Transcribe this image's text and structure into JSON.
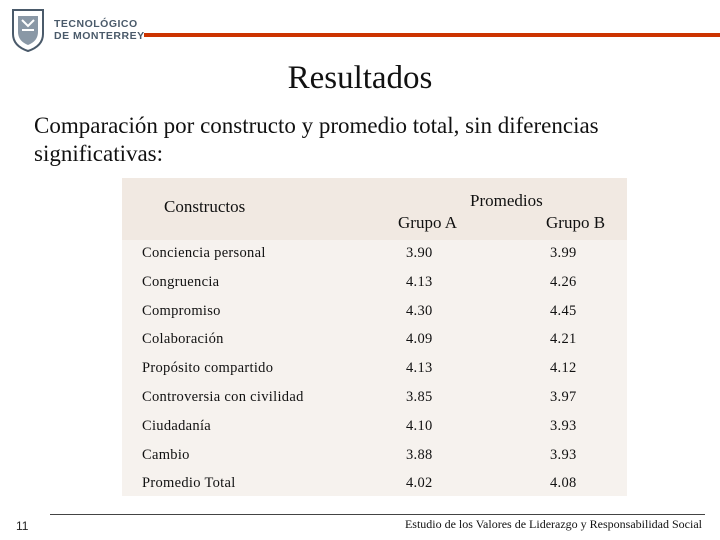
{
  "header": {
    "logo_line1": "TECNOLÓGICO",
    "logo_line2": "DE MONTERREY",
    "accent_color": "#cc3300"
  },
  "slide": {
    "title": "Resultados",
    "subtitle": "Comparación por constructo y promedio total, sin diferencias significativas:"
  },
  "table": {
    "col_constructs": "Constructos",
    "col_promedios": "Promedios",
    "col_grupo_a": "Grupo A",
    "col_grupo_b": "Grupo B",
    "rows": [
      {
        "name": "Conciencia personal",
        "a": "3.90",
        "b": "3.99"
      },
      {
        "name": "Congruencia",
        "a": "4.13",
        "b": "4.26"
      },
      {
        "name": "Compromiso",
        "a": "4.30",
        "b": "4.45"
      },
      {
        "name": "Colaboración",
        "a": "4.09",
        "b": "4.21"
      },
      {
        "name": "Propósito compartido",
        "a": "4.13",
        "b": "4.12"
      },
      {
        "name": "Controversia con civilidad",
        "a": "3.85",
        "b": "3.97"
      },
      {
        "name": "Ciudadanía",
        "a": "4.10",
        "b": "3.93"
      },
      {
        "name": "Cambio",
        "a": "3.88",
        "b": "3.93"
      },
      {
        "name": "Promedio Total",
        "a": "4.02",
        "b": "4.08"
      }
    ]
  },
  "footer": {
    "page_number": "11",
    "caption": "Estudio de los Valores de Liderazgo y Responsabilidad Social"
  }
}
